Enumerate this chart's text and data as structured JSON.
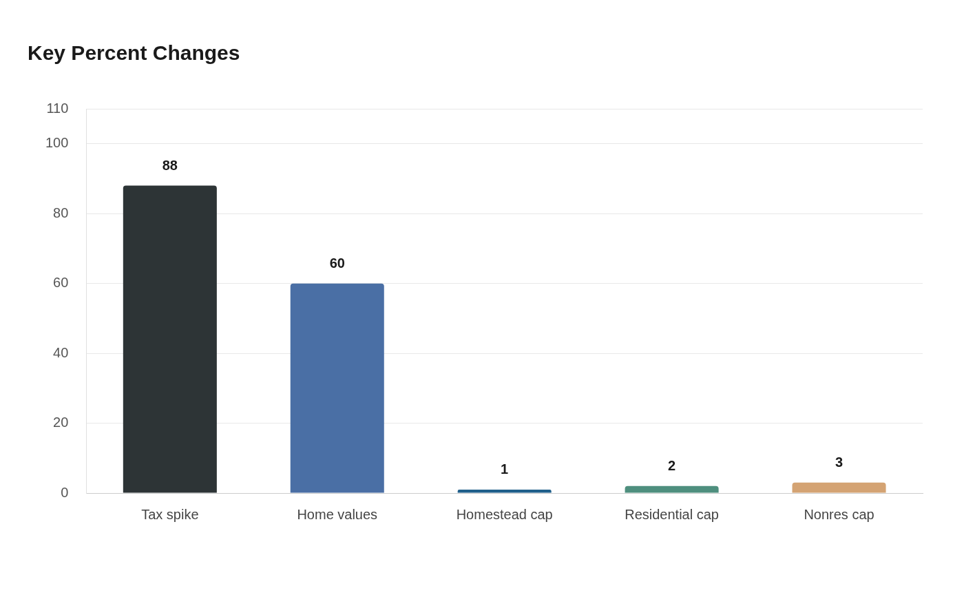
{
  "chart_data": {
    "type": "bar",
    "title": "Key Percent Changes",
    "categories": [
      "Tax spike",
      "Home values",
      "Homestead cap",
      "Residential cap",
      "Nonres cap"
    ],
    "values": [
      88,
      60,
      1,
      2,
      3
    ],
    "colors": [
      "#2d3436",
      "#4a6fa5",
      "#1f5f8b",
      "#4e8f7e",
      "#d4a373"
    ],
    "ylim": [
      0,
      110
    ],
    "yticks": [
      0,
      20,
      40,
      60,
      80,
      100,
      110
    ],
    "grid": "y",
    "legend": false,
    "data_labels": true
  }
}
